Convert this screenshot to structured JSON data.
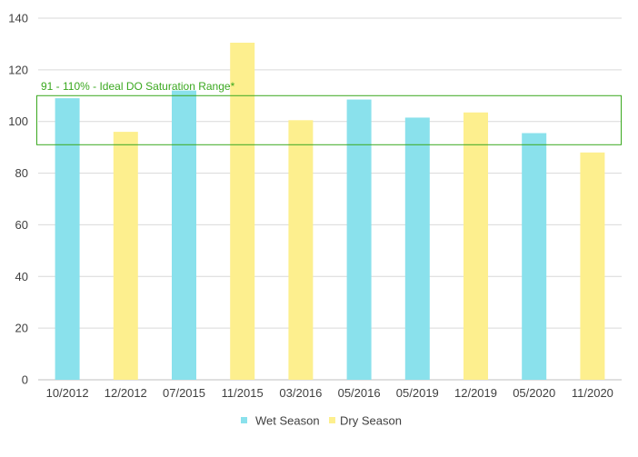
{
  "chart_data": {
    "type": "bar",
    "title": "",
    "xlabel": "",
    "ylabel": "",
    "ylim": [
      0,
      140
    ],
    "yticks": [
      0,
      20,
      40,
      60,
      80,
      100,
      120,
      140
    ],
    "grid": true,
    "categories": [
      "10/2012",
      "12/2012",
      "07/2015",
      "11/2015",
      "03/2016",
      "05/2016",
      "05/2019",
      "12/2019",
      "05/2020",
      "11/2020"
    ],
    "values": [
      109,
      96,
      112,
      130.5,
      100.5,
      108.5,
      101.5,
      103.5,
      95.5,
      88
    ],
    "seasons": [
      "Wet Season",
      "Dry Season",
      "Wet Season",
      "Dry Season",
      "Dry Season",
      "Wet Season",
      "Wet Season",
      "Dry Season",
      "Wet Season",
      "Dry Season"
    ],
    "series": [
      {
        "name": "Wet Season",
        "color": "#8ae1ec"
      },
      {
        "name": "Dry Season",
        "color": "#fdef8e"
      }
    ],
    "legend_position": "bottom-center",
    "annotation": {
      "text": "91 - 110% - Ideal DO Saturation Range*",
      "range": [
        91,
        110
      ],
      "color": "#3aa81f"
    }
  }
}
